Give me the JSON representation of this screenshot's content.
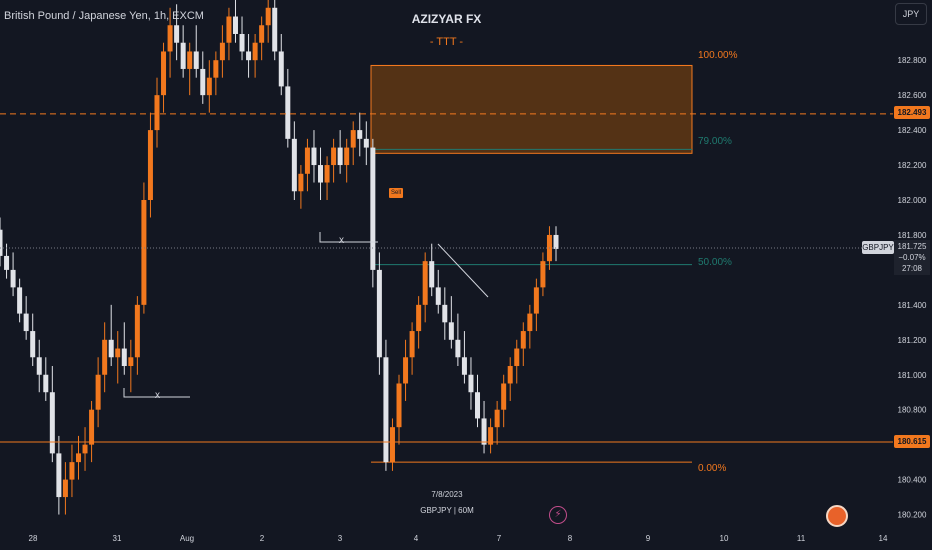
{
  "chart_data": {
    "type": "candlestick",
    "symbol_title": "British Pound / Japanese Yen, 1h, EXCM",
    "title": "AZIZYAR FX",
    "subtitle": "- TTT -",
    "currency": "JPY",
    "x_tick_labels": [
      "28",
      "31",
      "Aug",
      "2",
      "3",
      "4",
      "7",
      "8",
      "9",
      "10",
      "11",
      "14"
    ],
    "y_ticks": [
      182.8,
      182.6,
      182.4,
      182.2,
      182.0,
      181.8,
      181.6,
      181.4,
      181.2,
      181.0,
      180.8,
      180.6,
      180.4,
      180.2
    ],
    "y_tick_labels": [
      "182.800",
      "182.600",
      "182.400",
      "182.200",
      "182.000",
      "181.800",
      "181.600",
      "181.400",
      "181.200",
      "181.000",
      "180.800",
      "180.600",
      "180.400",
      "180.200"
    ],
    "ylim": [
      180.14,
      183.15
    ],
    "key_levels": [
      {
        "value": 182.493,
        "label": "182.493",
        "style": "dashed",
        "color": "#f2781e"
      },
      {
        "value": 180.615,
        "label": "180.615",
        "style": "solid",
        "color": "#f2781e"
      }
    ],
    "last_price": {
      "symbol": "GBPJPY",
      "price": "181.725",
      "change": "−0.07%",
      "countdown": "27:08",
      "value": 181.725
    },
    "fibonacci": [
      {
        "level": "100.00%",
        "price": 182.77,
        "color": "#f2781e"
      },
      {
        "level": "79.00%",
        "price": 182.29,
        "color": "#1f7a6f"
      },
      {
        "level": "50.00%",
        "price": 181.63,
        "color": "#1f7a6f"
      },
      {
        "level": "0.00%",
        "price": 180.5,
        "color": "#f2781e"
      }
    ],
    "annotations": {
      "cross_label": "x",
      "date_stamp": "7/8/2023",
      "chart_id": "GBPJPY | 60M",
      "badge": "Sell"
    },
    "colors": {
      "up": "#f2781e",
      "down": "#e1e3e8",
      "background": "#131722",
      "zone_fill": "#6b3c12"
    },
    "candles": [
      [
        181.83,
        181.9,
        181.62,
        181.68
      ],
      [
        181.68,
        181.75,
        181.55,
        181.6
      ],
      [
        181.6,
        181.7,
        181.45,
        181.5
      ],
      [
        181.5,
        181.55,
        181.3,
        181.35
      ],
      [
        181.35,
        181.45,
        181.2,
        181.25
      ],
      [
        181.25,
        181.35,
        181.05,
        181.1
      ],
      [
        181.1,
        181.2,
        180.9,
        181.0
      ],
      [
        181.0,
        181.1,
        180.85,
        180.9
      ],
      [
        180.9,
        181.05,
        180.5,
        180.55
      ],
      [
        180.55,
        180.65,
        180.2,
        180.3
      ],
      [
        180.3,
        180.5,
        180.2,
        180.4
      ],
      [
        180.4,
        180.6,
        180.3,
        180.5
      ],
      [
        180.5,
        180.65,
        180.4,
        180.55
      ],
      [
        180.55,
        180.7,
        180.45,
        180.6
      ],
      [
        180.6,
        180.85,
        180.5,
        180.8
      ],
      [
        180.8,
        181.1,
        180.7,
        181.0
      ],
      [
        181.0,
        181.3,
        180.9,
        181.2
      ],
      [
        181.2,
        181.4,
        181.05,
        181.1
      ],
      [
        181.1,
        181.25,
        180.95,
        181.15
      ],
      [
        181.15,
        181.3,
        181.0,
        181.05
      ],
      [
        181.05,
        181.2,
        180.9,
        181.1
      ],
      [
        181.1,
        181.45,
        181.0,
        181.4
      ],
      [
        181.4,
        182.1,
        181.35,
        182.0
      ],
      [
        182.0,
        182.5,
        181.9,
        182.4
      ],
      [
        182.4,
        182.7,
        182.3,
        182.6
      ],
      [
        182.6,
        182.9,
        182.5,
        182.85
      ],
      [
        182.85,
        183.1,
        182.7,
        183.0
      ],
      [
        183.0,
        183.12,
        182.8,
        182.9
      ],
      [
        182.9,
        183.0,
        182.7,
        182.75
      ],
      [
        182.75,
        182.9,
        182.6,
        182.85
      ],
      [
        182.85,
        183.0,
        182.7,
        182.75
      ],
      [
        182.75,
        182.85,
        182.55,
        182.6
      ],
      [
        182.6,
        182.8,
        182.5,
        182.7
      ],
      [
        182.7,
        182.85,
        182.6,
        182.8
      ],
      [
        182.8,
        183.0,
        182.7,
        182.9
      ],
      [
        182.9,
        183.1,
        182.8,
        183.05
      ],
      [
        183.05,
        183.15,
        182.9,
        182.95
      ],
      [
        182.95,
        183.05,
        182.8,
        182.85
      ],
      [
        182.85,
        182.95,
        182.7,
        182.8
      ],
      [
        182.8,
        182.95,
        182.7,
        182.9
      ],
      [
        182.9,
        183.05,
        182.8,
        183.0
      ],
      [
        183.0,
        183.15,
        182.9,
        183.1
      ],
      [
        183.1,
        183.15,
        182.8,
        182.85
      ],
      [
        182.85,
        182.95,
        182.6,
        182.65
      ],
      [
        182.65,
        182.75,
        182.3,
        182.35
      ],
      [
        182.35,
        182.45,
        182.0,
        182.05
      ],
      [
        182.05,
        182.2,
        181.95,
        182.15
      ],
      [
        182.15,
        182.35,
        182.05,
        182.3
      ],
      [
        182.3,
        182.4,
        182.1,
        182.2
      ],
      [
        182.2,
        182.3,
        182.0,
        182.1
      ],
      [
        182.1,
        182.25,
        182.0,
        182.2
      ],
      [
        182.2,
        182.35,
        182.1,
        182.3
      ],
      [
        182.3,
        182.4,
        182.15,
        182.2
      ],
      [
        182.2,
        182.35,
        182.1,
        182.3
      ],
      [
        182.3,
        182.45,
        182.2,
        182.4
      ],
      [
        182.4,
        182.5,
        182.25,
        182.35
      ],
      [
        182.35,
        182.45,
        182.2,
        182.3
      ],
      [
        182.3,
        182.35,
        181.5,
        181.6
      ],
      [
        181.6,
        181.7,
        181.0,
        181.1
      ],
      [
        181.1,
        181.2,
        180.45,
        180.5
      ],
      [
        180.5,
        180.75,
        180.45,
        180.7
      ],
      [
        180.7,
        181.0,
        180.6,
        180.95
      ],
      [
        180.95,
        181.2,
        180.85,
        181.1
      ],
      [
        181.1,
        181.3,
        181.0,
        181.25
      ],
      [
        181.25,
        181.45,
        181.15,
        181.4
      ],
      [
        181.4,
        181.7,
        181.3,
        181.65
      ],
      [
        181.65,
        181.75,
        181.45,
        181.5
      ],
      [
        181.5,
        181.6,
        181.35,
        181.4
      ],
      [
        181.4,
        181.5,
        181.2,
        181.3
      ],
      [
        181.3,
        181.45,
        181.15,
        181.2
      ],
      [
        181.2,
        181.35,
        181.05,
        181.1
      ],
      [
        181.1,
        181.25,
        180.95,
        181.0
      ],
      [
        181.0,
        181.1,
        180.8,
        180.9
      ],
      [
        180.9,
        181.0,
        180.7,
        180.75
      ],
      [
        180.75,
        180.85,
        180.55,
        180.6
      ],
      [
        180.6,
        180.75,
        180.55,
        180.7
      ],
      [
        180.7,
        180.85,
        180.6,
        180.8
      ],
      [
        180.8,
        181.0,
        180.7,
        180.95
      ],
      [
        180.95,
        181.1,
        180.85,
        181.05
      ],
      [
        181.05,
        181.2,
        180.95,
        181.15
      ],
      [
        181.15,
        181.3,
        181.05,
        181.25
      ],
      [
        181.25,
        181.4,
        181.15,
        181.35
      ],
      [
        181.35,
        181.55,
        181.25,
        181.5
      ],
      [
        181.5,
        181.7,
        181.45,
        181.65
      ],
      [
        181.65,
        181.85,
        181.6,
        181.8
      ],
      [
        181.8,
        181.85,
        181.65,
        181.72
      ]
    ]
  }
}
